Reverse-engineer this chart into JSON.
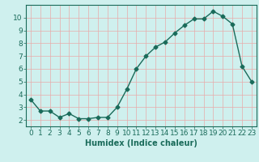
{
  "x": [
    0,
    1,
    2,
    3,
    4,
    5,
    6,
    7,
    8,
    9,
    10,
    11,
    12,
    13,
    14,
    15,
    16,
    17,
    18,
    19,
    20,
    21,
    22,
    23
  ],
  "y": [
    3.6,
    2.7,
    2.7,
    2.2,
    2.5,
    2.1,
    2.1,
    2.2,
    2.2,
    3.0,
    4.4,
    6.0,
    7.0,
    7.7,
    8.1,
    8.8,
    9.4,
    9.9,
    9.9,
    10.5,
    10.1,
    9.5,
    6.2,
    5.0
  ],
  "xlabel": "Humidex (Indice chaleur)",
  "xlim": [
    -0.5,
    23.5
  ],
  "ylim": [
    1.5,
    11.0
  ],
  "yticks": [
    2,
    3,
    4,
    5,
    6,
    7,
    8,
    9,
    10
  ],
  "xticks": [
    0,
    1,
    2,
    3,
    4,
    5,
    6,
    7,
    8,
    9,
    10,
    11,
    12,
    13,
    14,
    15,
    16,
    17,
    18,
    19,
    20,
    21,
    22,
    23
  ],
  "line_color": "#1a6b5a",
  "marker": "D",
  "markersize": 2.5,
  "linewidth": 1.0,
  "bg_color": "#cff0ee",
  "grid_color": "#e8aaaa",
  "grid_alpha": 1.0,
  "xlabel_fontsize": 7,
  "tick_fontsize": 6.5
}
